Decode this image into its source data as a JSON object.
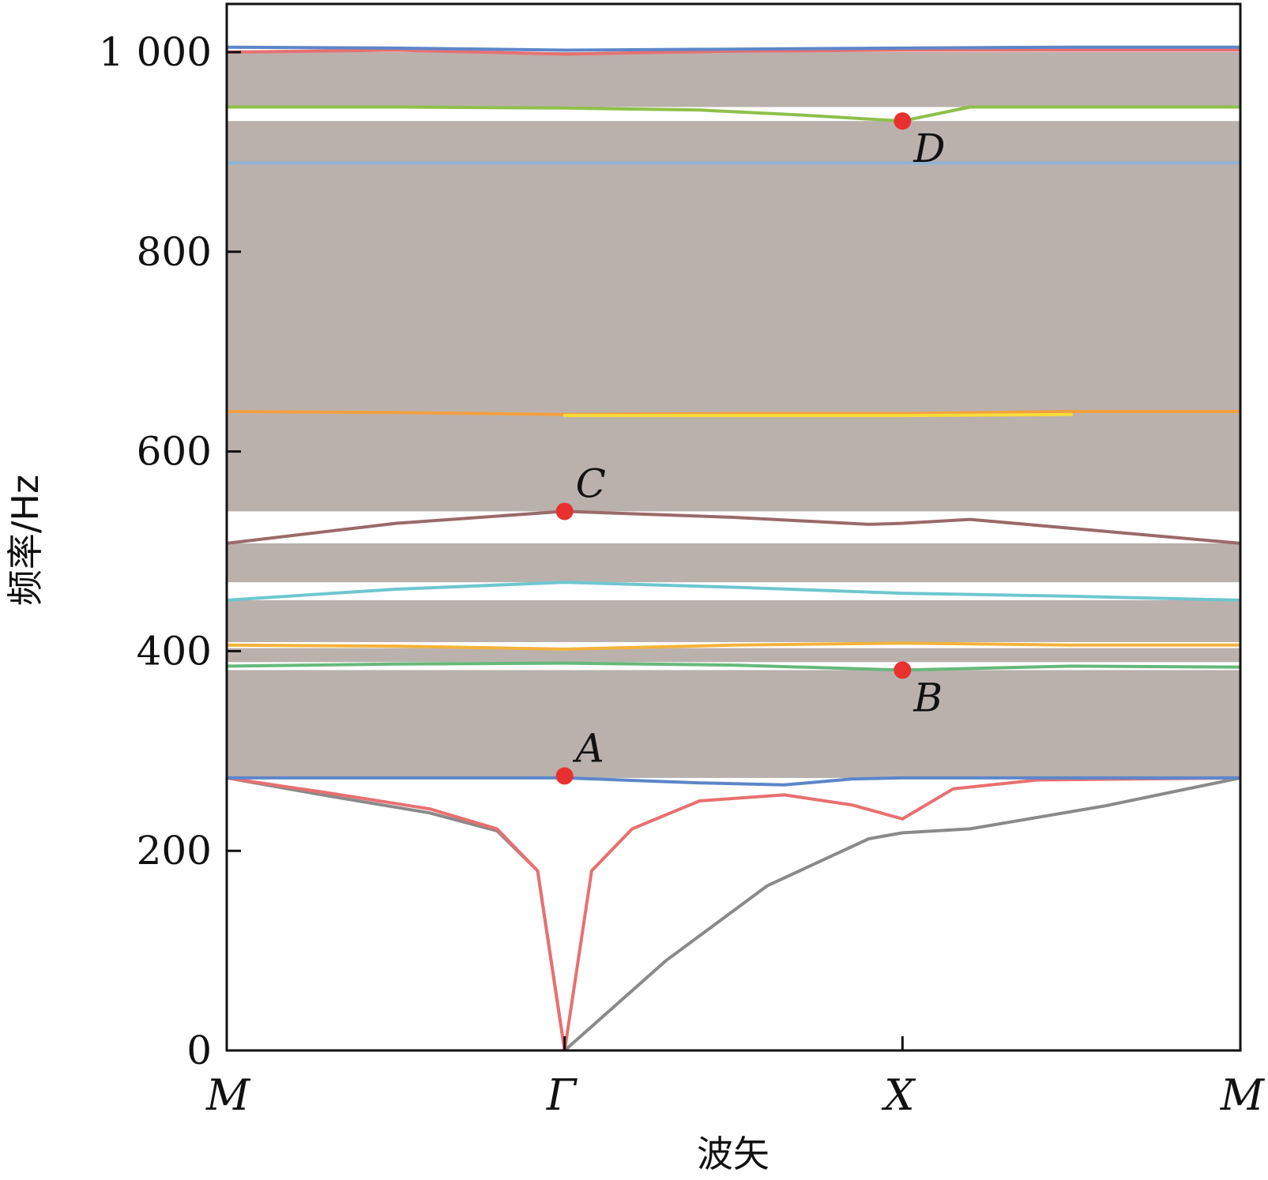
{
  "chart_data": {
    "type": "line",
    "ylabel": "频率/Hz",
    "xlabel": "波矢",
    "ylim": [
      0,
      1000
    ],
    "y_ticks": [
      0,
      200,
      400,
      600,
      800,
      1000
    ],
    "y_tick_labels": [
      "0",
      "200",
      "400",
      "600",
      "800",
      "1 000"
    ],
    "x_ticks": [
      0,
      1,
      2,
      3
    ],
    "x_tick_labels": [
      "M",
      "Γ",
      "X",
      "M"
    ],
    "grid": false,
    "band_fill_color": "#bab1ad",
    "bands": [
      {
        "from": 273,
        "to": 381
      },
      {
        "from": 389,
        "to": 403
      },
      {
        "from": 409,
        "to": 451
      },
      {
        "from": 469,
        "to": 508
      },
      {
        "from": 540,
        "to": 931
      },
      {
        "from": 945,
        "to": 1000
      }
    ],
    "series": [
      {
        "color": "#8a8a8a",
        "x": [
          0,
          0.3,
          0.6,
          0.8,
          0.92,
          1,
          1.3,
          1.6,
          1.9,
          2,
          2.2,
          2.6,
          3
        ],
        "y": [
          273,
          255,
          238,
          220,
          180,
          0,
          90,
          165,
          212,
          218,
          222,
          245,
          273
        ]
      },
      {
        "color": "#e87070",
        "x": [
          0,
          0.3,
          0.6,
          0.8,
          0.92,
          1,
          1.08,
          1.2,
          1.4,
          1.65,
          1.85,
          2,
          2.15,
          2.4,
          3
        ],
        "y": [
          273,
          258,
          242,
          222,
          180,
          0,
          180,
          222,
          250,
          256,
          246,
          232,
          262,
          271,
          273
        ]
      },
      {
        "color": "#5d86c9",
        "x": [
          0,
          0.5,
          1,
          1.4,
          1.65,
          1.85,
          2,
          2.5,
          3
        ],
        "y": [
          273,
          273,
          273,
          268,
          266,
          272,
          273,
          273,
          273
        ]
      },
      {
        "color": "#66b97a",
        "x": [
          0,
          0.5,
          1,
          1.5,
          2,
          2.5,
          3
        ],
        "y": [
          385,
          387,
          388,
          386,
          381,
          385,
          384
        ]
      },
      {
        "color": "#f3b23a",
        "x": [
          0,
          0.5,
          1,
          1.5,
          2,
          2.5,
          3
        ],
        "y": [
          406,
          405,
          402,
          406,
          408,
          406,
          406
        ]
      },
      {
        "color": "#6ec7cf",
        "x": [
          0,
          0.5,
          1,
          1.5,
          2,
          2.5,
          3
        ],
        "y": [
          451,
          462,
          469,
          464,
          458,
          455,
          451
        ]
      },
      {
        "color": "#9a6a6a",
        "x": [
          0,
          0.5,
          1,
          1.5,
          1.9,
          2,
          2.2,
          2.6,
          3
        ],
        "y": [
          508,
          528,
          540,
          534,
          527,
          528,
          532,
          520,
          508
        ]
      },
      {
        "color": "#f2a040",
        "x": [
          0,
          0.5,
          1,
          1.5,
          2,
          2.5,
          3
        ],
        "y": [
          640,
          639,
          637,
          638,
          638,
          640,
          640
        ]
      },
      {
        "color": "#f7dd3a",
        "x": [
          1,
          1.5,
          2,
          2.5
        ],
        "y": [
          636,
          636,
          636,
          637
        ]
      },
      {
        "color": "#8fb3d8",
        "x": [
          0,
          1,
          2,
          3
        ],
        "y": [
          889,
          889,
          889,
          889
        ]
      },
      {
        "color": "#8fc04a",
        "x": [
          0,
          0.5,
          1,
          1.4,
          1.7,
          2,
          2.2,
          2.5,
          3
        ],
        "y": [
          945,
          945,
          944,
          942,
          937,
          931,
          945,
          945,
          945
        ]
      },
      {
        "color": "#e87070",
        "x": [
          0,
          0.5,
          1,
          1.5,
          2,
          2.5,
          3
        ],
        "y": [
          1000,
          1002,
          998,
          1001,
          1002,
          1002,
          1002
        ]
      },
      {
        "color": "#5d86c9",
        "x": [
          0,
          0.5,
          1,
          1.5,
          2,
          2.5,
          3
        ],
        "y": [
          1005,
          1004,
          1002,
          1003,
          1004,
          1005,
          1005
        ]
      }
    ],
    "points": [
      {
        "label": "A",
        "x": 1,
        "y": 275,
        "label_pos": "top-right"
      },
      {
        "label": "B",
        "x": 2,
        "y": 381,
        "label_pos": "bottom-right"
      },
      {
        "label": "C",
        "x": 1,
        "y": 540,
        "label_pos": "top-right"
      },
      {
        "label": "D",
        "x": 2,
        "y": 931,
        "label_pos": "bottom-right"
      }
    ],
    "point_color": "#e8312f"
  }
}
